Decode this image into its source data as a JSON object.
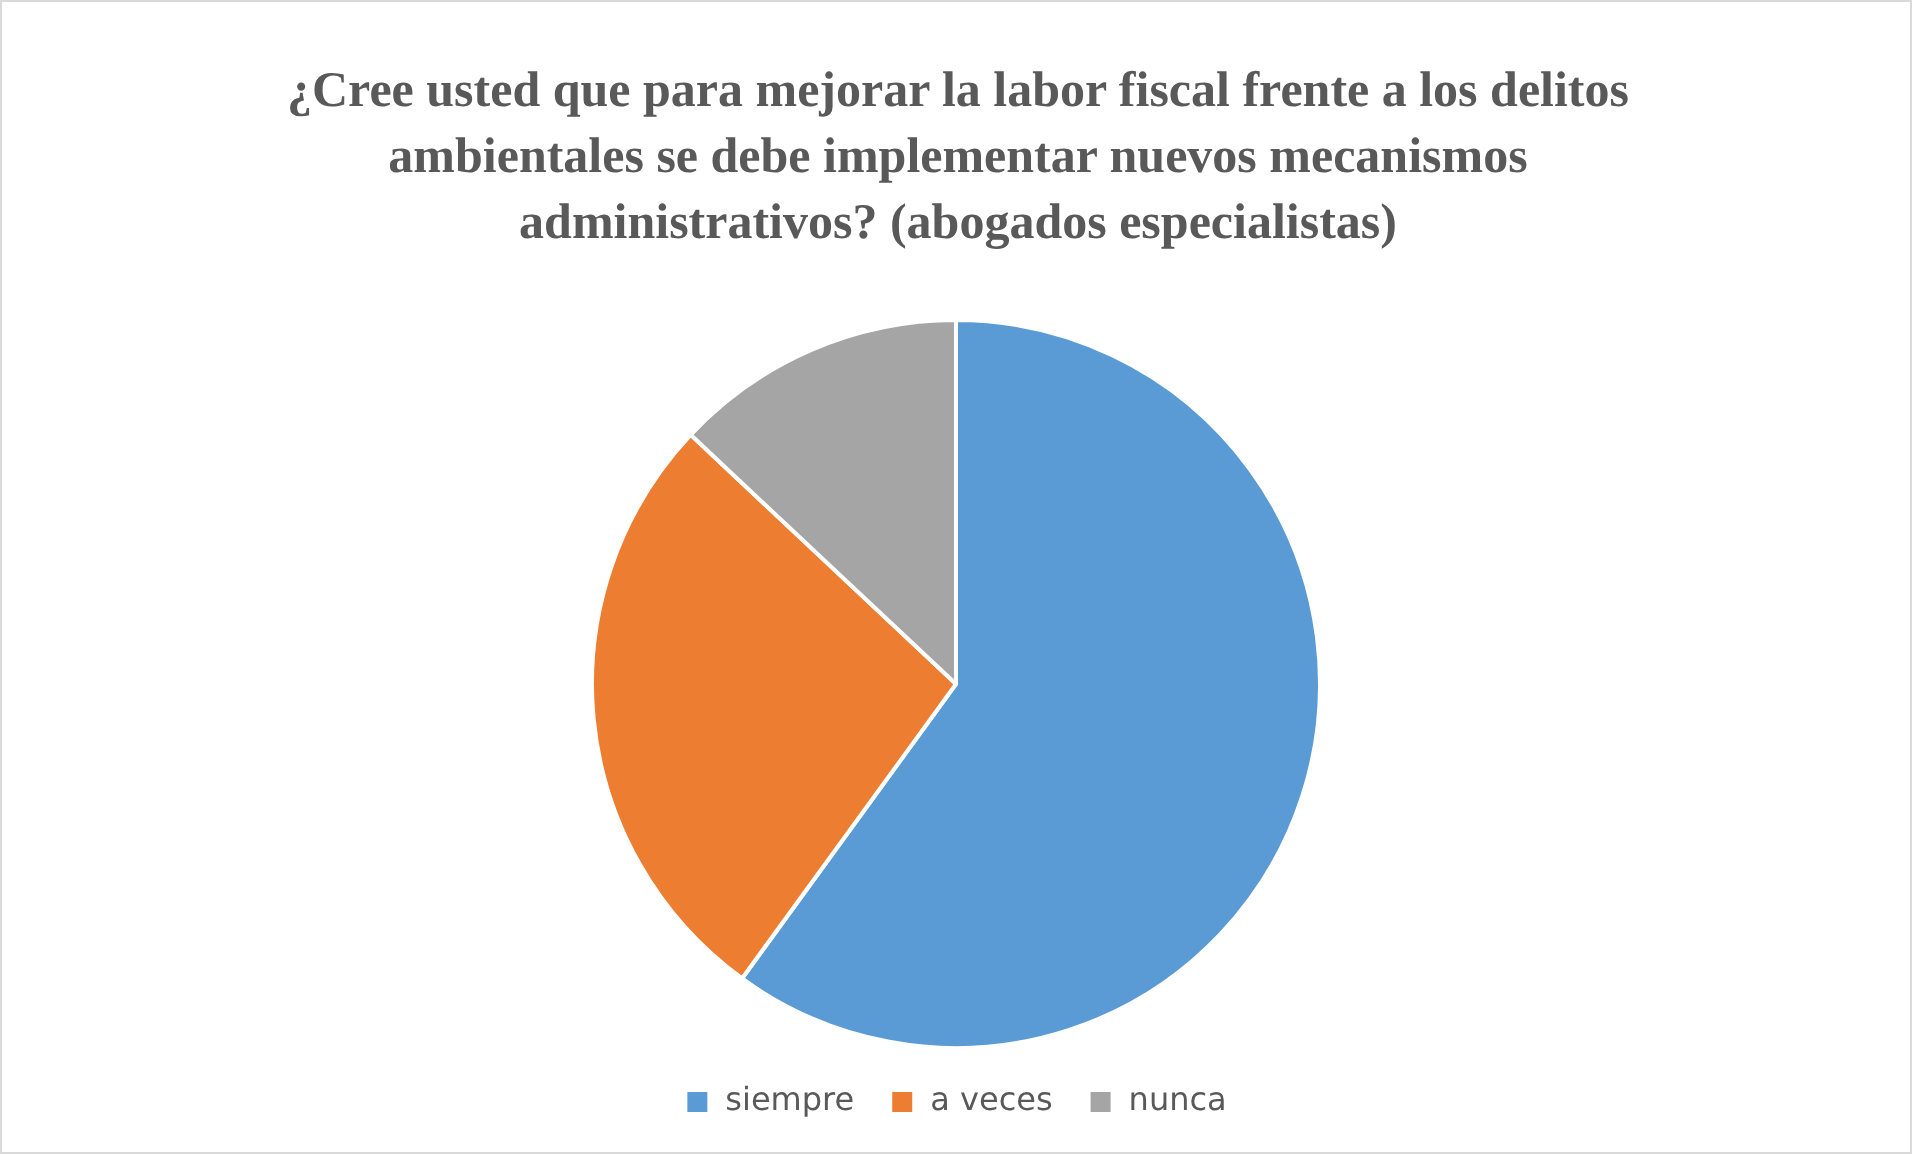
{
  "chart_data": {
    "type": "pie",
    "title": "¿Cree usted que para mejorar la labor fiscal frente a los delitos ambientales se debe implementar nuevos mecanismos administrativos? (abogados especialistas)",
    "categories": [
      "siempre",
      "a veces",
      "nunca"
    ],
    "values": [
      60,
      27,
      13
    ],
    "colors": [
      "#5b9bd5",
      "#ed7d31",
      "#a5a5a5"
    ],
    "legend": "bottom"
  }
}
